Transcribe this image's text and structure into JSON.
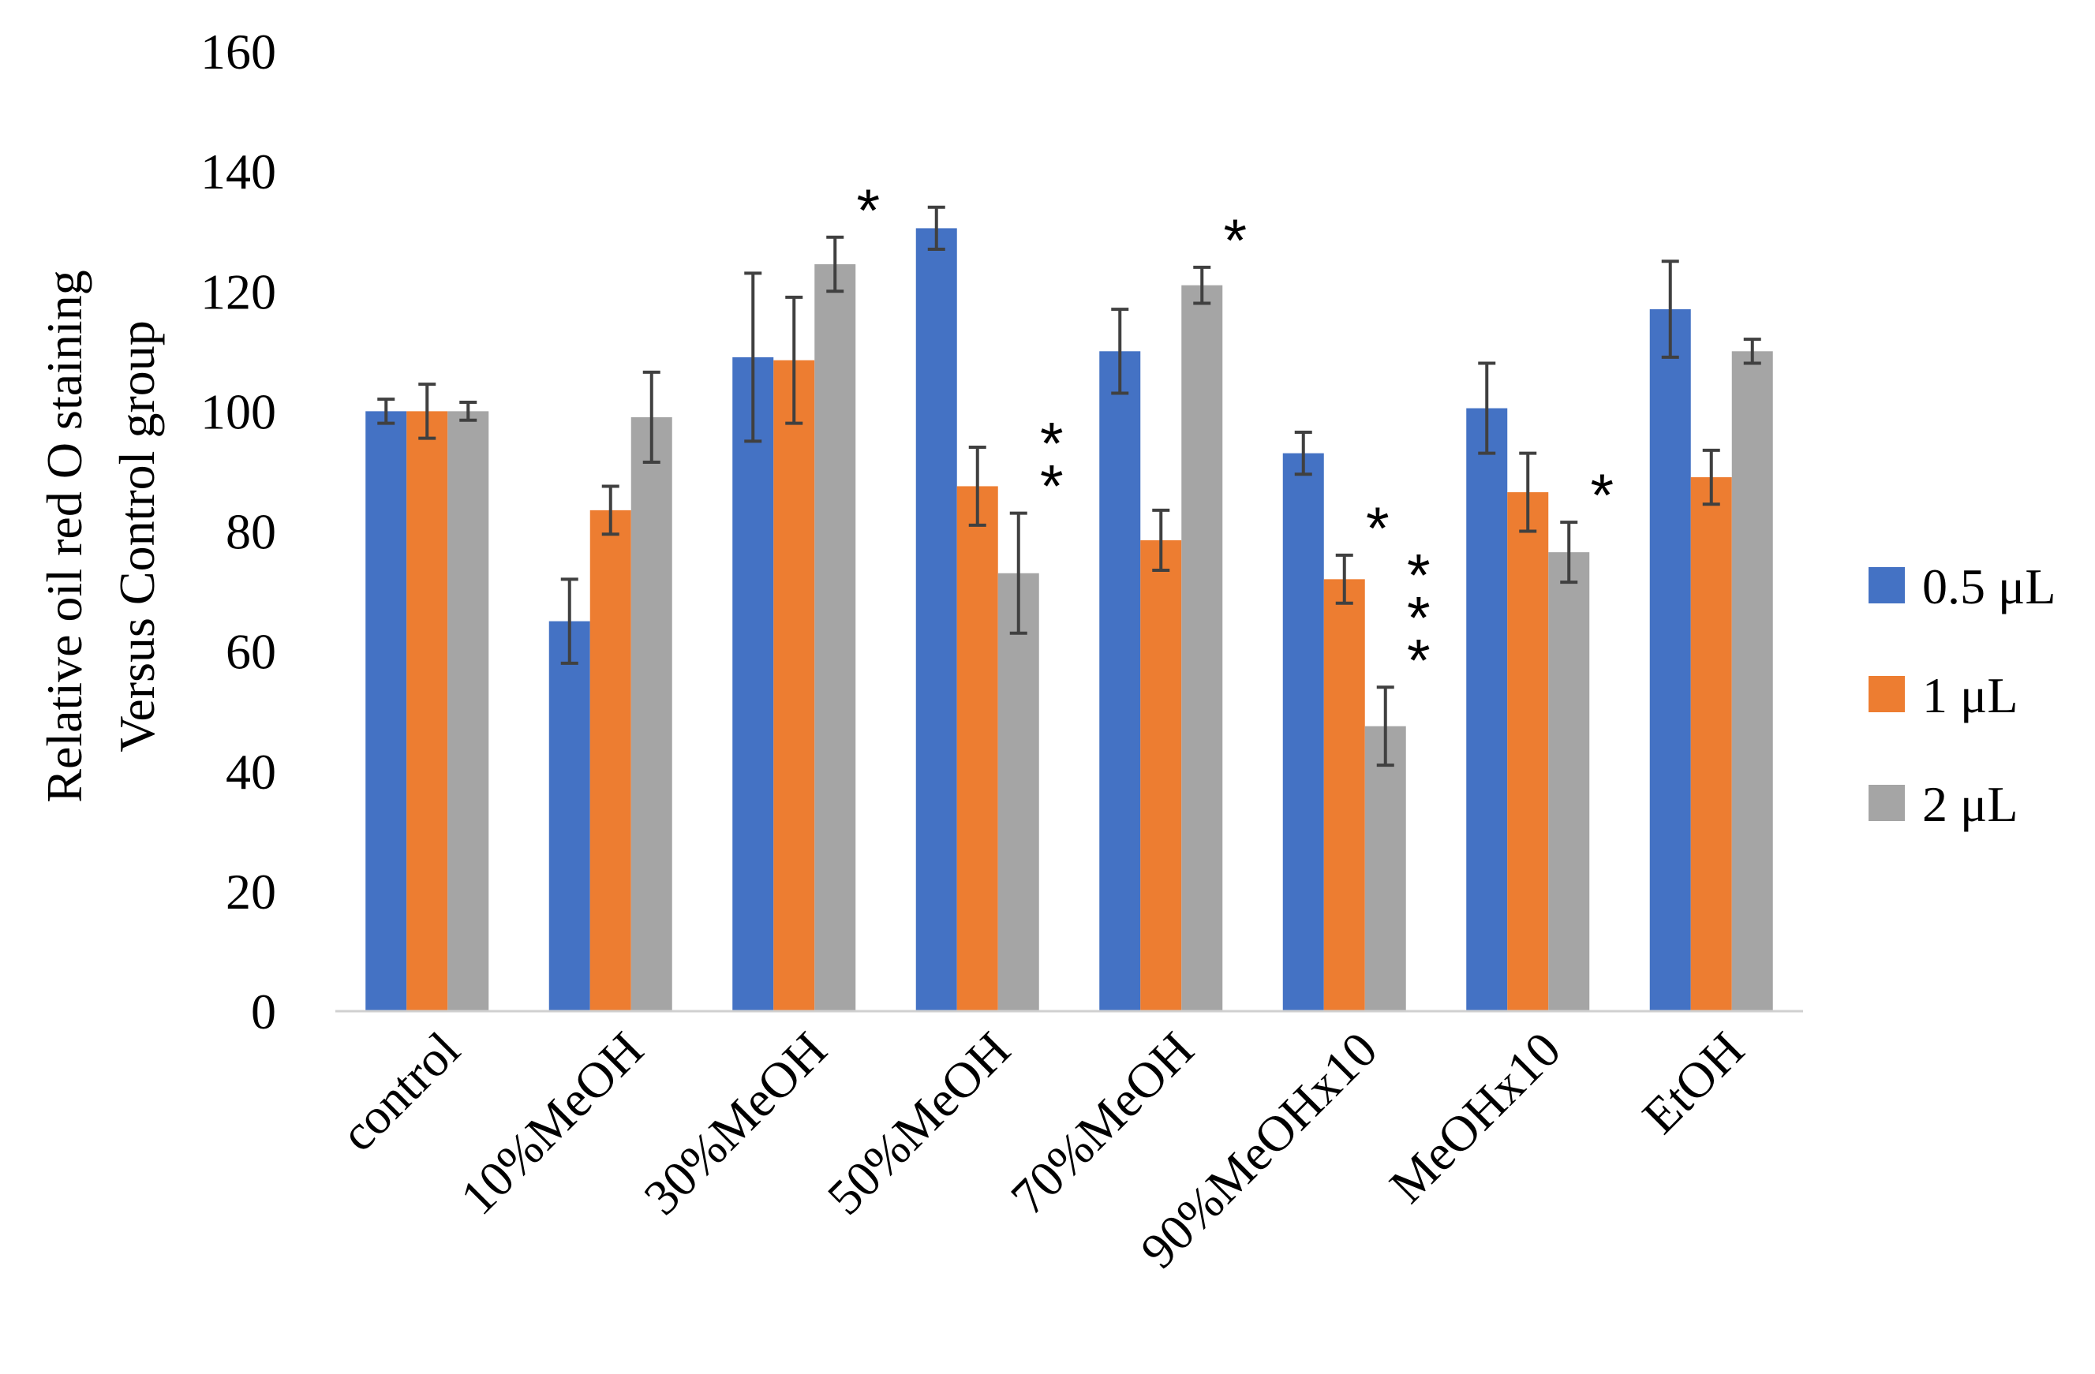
{
  "chart_data": {
    "type": "bar",
    "title": "",
    "xlabel": "",
    "ylabel_lines": [
      "Relative oil red O staining",
      "Versus Control group"
    ],
    "ylim": [
      0,
      160
    ],
    "yticks": [
      "0",
      "20",
      "40",
      "60",
      "80",
      "100",
      "120",
      "140",
      "160"
    ],
    "grid": false,
    "legend_position": "right",
    "categories": [
      "control",
      "10%MeOH",
      "30%MeOH",
      "50%MeOH",
      "70%MeOH",
      "90%MeOHx10",
      "MeOHx10",
      "EtOH"
    ],
    "series": [
      {
        "name": "0.5 μL",
        "color": "#4472C4",
        "values": [
          100,
          65,
          109,
          130.5,
          110,
          93,
          100.5,
          117
        ],
        "errors": [
          2,
          7,
          14,
          3.5,
          7,
          3.5,
          7.5,
          8
        ]
      },
      {
        "name": "1 μL",
        "color": "#ED7D31",
        "values": [
          100,
          83.5,
          108.5,
          87.5,
          78.5,
          72,
          86.5,
          89
        ],
        "errors": [
          4.5,
          4,
          10.5,
          6.5,
          5,
          4,
          6.5,
          4.5
        ]
      },
      {
        "name": "2 μL",
        "color": "#A5A5A5",
        "values": [
          100,
          99,
          124.5,
          73,
          121,
          47.5,
          76.5,
          110
        ],
        "errors": [
          1.5,
          7.5,
          4.5,
          10,
          3,
          6.5,
          5,
          2
        ]
      }
    ],
    "annotations": [
      {
        "category": "30%MeOH",
        "series": "2 μL",
        "label": "*"
      },
      {
        "category": "50%MeOH",
        "series": "2 μL",
        "label": "**"
      },
      {
        "category": "70%MeOH",
        "series": "2 μL",
        "label": "*"
      },
      {
        "category": "90%MeOHx10",
        "series": "1 μL",
        "label": "*"
      },
      {
        "category": "90%MeOHx10",
        "series": "2 μL",
        "label": "***"
      },
      {
        "category": "MeOHx10",
        "series": "2 μL",
        "label": "*"
      }
    ]
  }
}
